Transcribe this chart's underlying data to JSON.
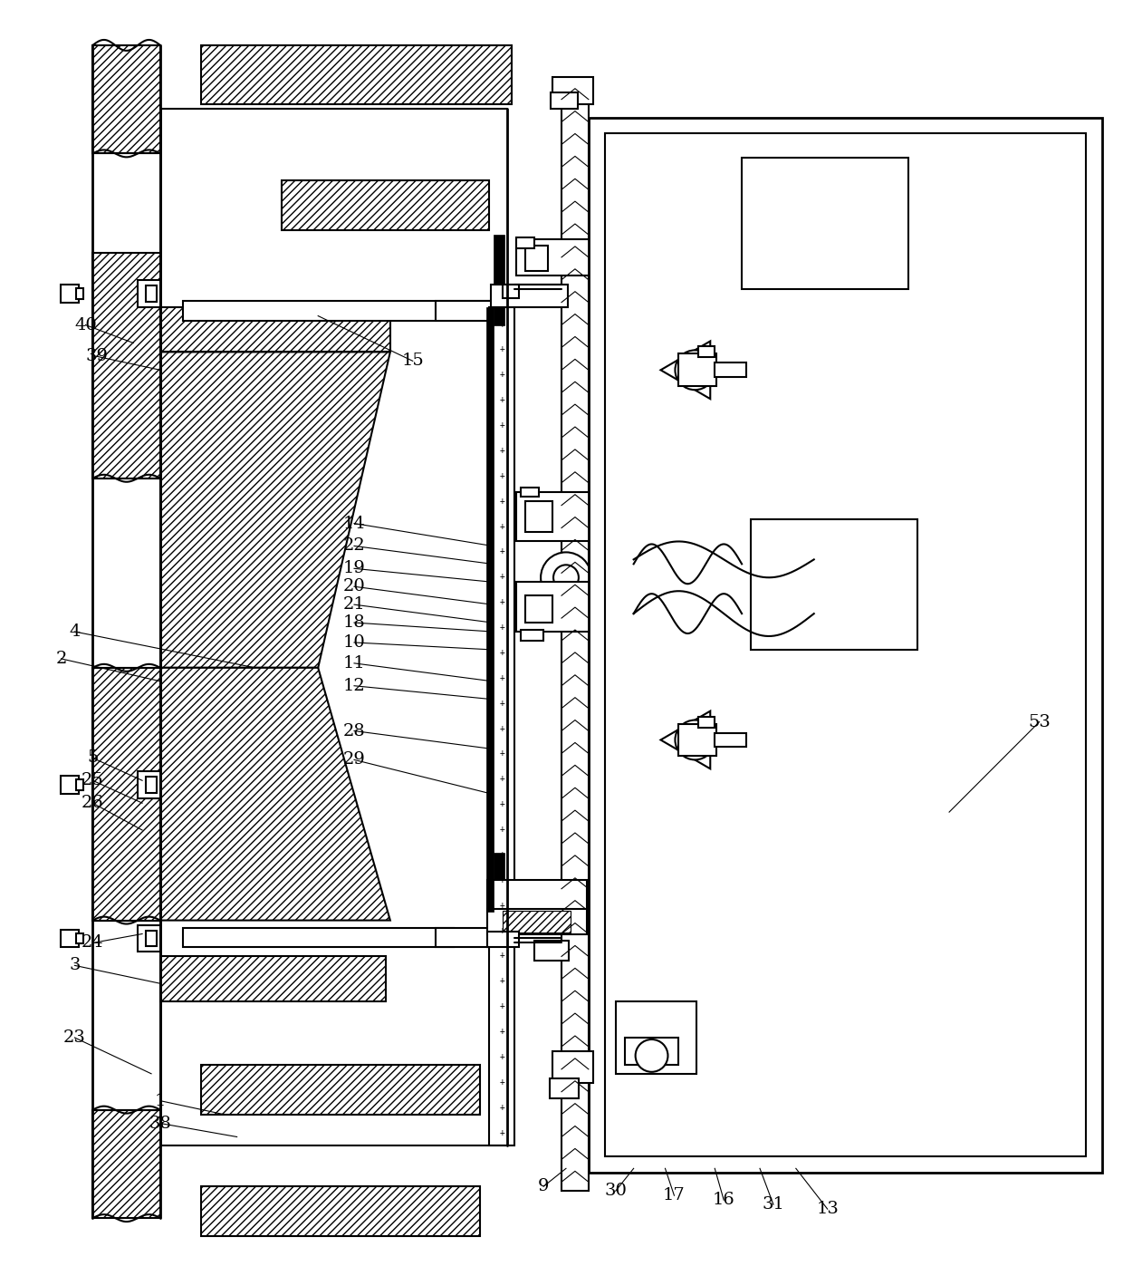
{
  "bg_color": "#ffffff",
  "line_color": "#000000",
  "fig_width": 12.4,
  "fig_height": 13.97
}
